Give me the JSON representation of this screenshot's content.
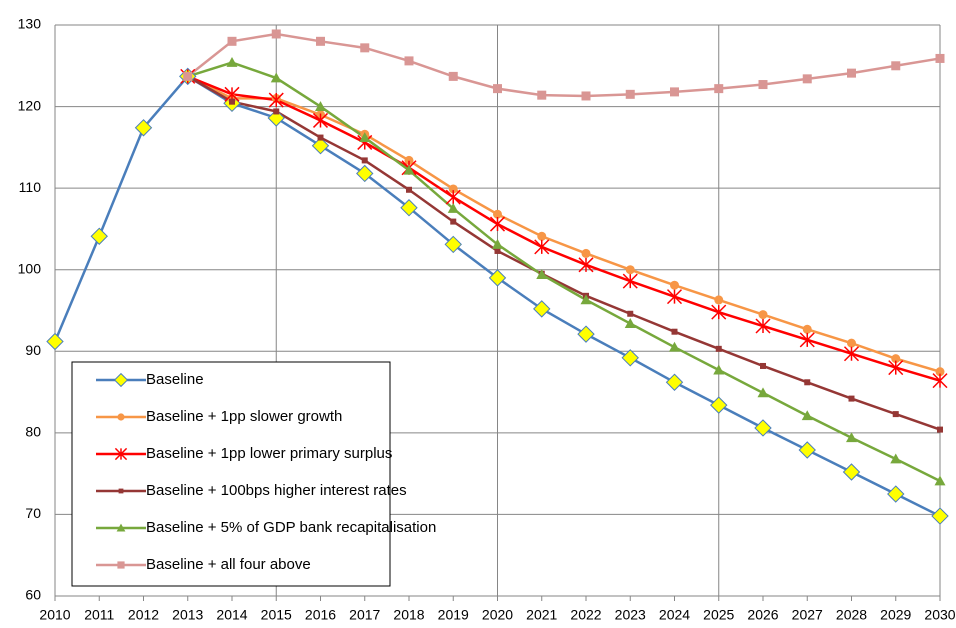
{
  "chart_data": {
    "type": "line",
    "x": [
      2010,
      2011,
      2012,
      2013,
      2014,
      2015,
      2016,
      2017,
      2018,
      2019,
      2020,
      2021,
      2022,
      2023,
      2024,
      2025,
      2026,
      2027,
      2028,
      2029,
      2030
    ],
    "xlim": [
      2010,
      2030
    ],
    "xticks": [
      2010,
      2011,
      2012,
      2013,
      2014,
      2015,
      2016,
      2017,
      2018,
      2019,
      2020,
      2021,
      2022,
      2023,
      2024,
      2025,
      2026,
      2027,
      2028,
      2029,
      2030
    ],
    "xgrid": [
      2015,
      2020,
      2025,
      2030
    ],
    "ylim": [
      60,
      130
    ],
    "yticks": [
      60,
      70,
      80,
      90,
      100,
      110,
      120,
      130
    ],
    "grid": true,
    "legend": "lower left",
    "series": [
      {
        "name": "Baseline",
        "color": "#4a7ebb",
        "marker": "diamond",
        "marker_color": "#ffff00",
        "values": [
          91.2,
          104.1,
          117.4,
          123.7,
          120.4,
          118.6,
          115.2,
          111.8,
          107.6,
          103.1,
          99.0,
          95.2,
          92.1,
          89.2,
          86.2,
          83.4,
          80.6,
          77.9,
          75.2,
          72.5,
          69.8
        ]
      },
      {
        "name": "Baseline + 1pp slower growth",
        "color": "#f79646",
        "marker": "circle",
        "marker_color": "#f79646",
        "values": [
          null,
          null,
          null,
          123.7,
          121.0,
          121.0,
          119.0,
          116.6,
          113.4,
          109.9,
          106.8,
          104.1,
          102.0,
          100.0,
          98.1,
          96.3,
          94.5,
          92.7,
          91.0,
          89.1,
          87.5
        ]
      },
      {
        "name": "Baseline + 1pp lower primary surplus",
        "color": "#ff0000",
        "marker": "star",
        "marker_color": "#ff0000",
        "values": [
          null,
          null,
          null,
          123.7,
          121.5,
          120.8,
          118.3,
          115.6,
          112.5,
          108.9,
          105.6,
          102.8,
          100.6,
          98.6,
          96.7,
          94.8,
          93.1,
          91.4,
          89.7,
          88.0,
          86.4
        ]
      },
      {
        "name": "Baseline + 100bps higher interest rates",
        "color": "#953735",
        "marker": "smallsquare",
        "marker_color": "#953735",
        "values": [
          null,
          null,
          null,
          123.7,
          120.6,
          119.4,
          116.2,
          113.4,
          109.8,
          105.9,
          102.3,
          99.5,
          96.8,
          94.6,
          92.4,
          90.3,
          88.2,
          86.2,
          84.2,
          82.3,
          80.4
        ]
      },
      {
        "name": "Baseline + 5% of GDP bank recapitalisation",
        "color": "#77a83c",
        "marker": "triangle",
        "marker_color": "#77a83c",
        "values": [
          null,
          null,
          null,
          123.7,
          125.4,
          123.5,
          120.0,
          116.2,
          112.2,
          107.5,
          103.1,
          99.4,
          96.3,
          93.4,
          90.5,
          87.7,
          84.9,
          82.1,
          79.4,
          76.8,
          74.1
        ]
      },
      {
        "name": "Baseline + all four above",
        "color": "#d99694",
        "marker": "square",
        "marker_color": "#d99694",
        "values": [
          null,
          null,
          null,
          123.7,
          128.0,
          128.9,
          128.0,
          127.2,
          125.6,
          123.7,
          122.2,
          121.4,
          121.3,
          121.5,
          121.8,
          122.2,
          122.7,
          123.4,
          124.1,
          125.0,
          125.9
        ]
      }
    ]
  }
}
